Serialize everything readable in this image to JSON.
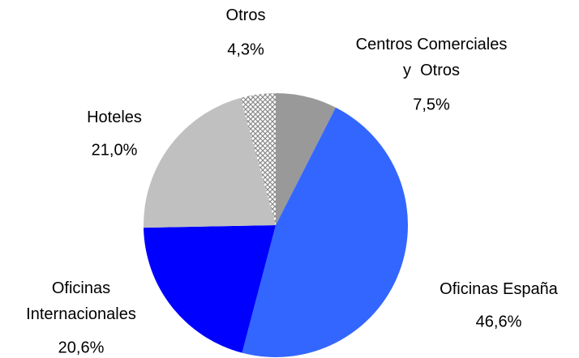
{
  "chart_data": {
    "type": "pie",
    "categories": [
      "Centros Comerciales\ny  Otros",
      "Oficinas España",
      "Oficinas\nInternacionales",
      "Hoteles",
      "Otros"
    ],
    "values": [
      7.5,
      46.6,
      20.6,
      21.0,
      4.3
    ],
    "value_labels": [
      "7,5%",
      "46,6%",
      "20,6%",
      "21,0%",
      "4,3%"
    ],
    "colors": [
      "#999999",
      "#3366ff",
      "#0000ff",
      "#c0c0c0",
      "url(#cross)"
    ]
  }
}
